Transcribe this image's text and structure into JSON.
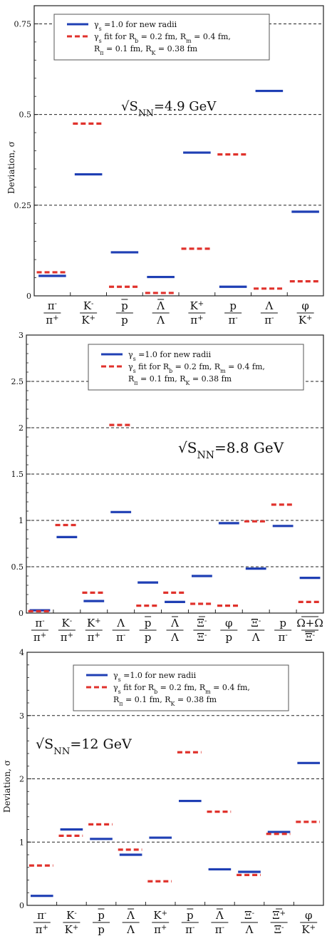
{
  "chart_data": [
    {
      "type": "bar",
      "ylabel": "Deviation, σ",
      "ylim": [
        0,
        0.8
      ],
      "yticks": [
        "0",
        "0.25",
        "0.5",
        "0.75"
      ],
      "ytick_values": [
        0,
        0.25,
        0.5,
        0.75
      ],
      "annotation": {
        "prefix": "√S",
        "sub": "NN",
        "suffix": "=4.9 GeV"
      },
      "grid": "dashed horizontal lines at 0.25, 0.5, 0.75",
      "legend": {
        "placement": "top-center",
        "lines": [
          [
            "γ",
            "s",
            " =1.0 for new radii"
          ],
          [
            "γ",
            "s",
            "  fit for R",
            "b",
            " = 0.2 fm, R",
            "m",
            " = 0.4 fm,"
          ],
          [
            "R",
            "π",
            " = 0.1 fm,  R",
            "K",
            " = 0.38 fm"
          ]
        ]
      },
      "categories": [
        {
          "num": "π",
          "num_sup": "-",
          "den": "π",
          "den_sup": "+"
        },
        {
          "num": "K",
          "num_sup": "-",
          "den": "K",
          "den_sup": "+"
        },
        {
          "num": "p",
          "num_bar": true,
          "den": "p"
        },
        {
          "num": "Λ",
          "num_bar": true,
          "den": "Λ"
        },
        {
          "num": "K",
          "num_sup": "+",
          "den": "π",
          "den_sup": "+"
        },
        {
          "num": "p",
          "den": "π",
          "den_sup": "-"
        },
        {
          "num": "Λ",
          "den": "π",
          "den_sup": "-"
        },
        {
          "num": "φ",
          "den": "K",
          "den_sup": "+"
        }
      ],
      "series": [
        {
          "name": "γs =1.0 for new radii",
          "color": "#1f3fb4",
          "style": "solid",
          "values": [
            0.055,
            0.335,
            0.12,
            0.052,
            0.395,
            0.025,
            0.565,
            0.232
          ]
        },
        {
          "name": "γs fit",
          "color": "#e0322c",
          "style": "dashed",
          "values": [
            0.065,
            0.475,
            0.025,
            0.008,
            0.13,
            0.39,
            0.02,
            0.04
          ]
        }
      ]
    },
    {
      "type": "bar",
      "ylabel": "",
      "ylim": [
        0,
        3
      ],
      "yticks": [
        "0",
        "0.5",
        "1",
        "1.5",
        "2",
        "2.5",
        "3"
      ],
      "ytick_values": [
        0,
        0.5,
        1,
        1.5,
        2,
        2.5,
        3
      ],
      "annotation": {
        "prefix": "√S",
        "sub": "NN",
        "suffix": "=8.8 GeV"
      },
      "grid": "dashed horizontal lines at 0.5, 1, 1.5, 2, 2.5",
      "legend": {
        "placement": "top-right",
        "lines": [
          [
            "γ",
            "s",
            " =1.0 for new radii"
          ],
          [
            "γ",
            "s",
            "  fit for R",
            "b",
            " = 0.2 fm, R",
            "m",
            " = 0.4 fm,"
          ],
          [
            "R",
            "π",
            " = 0.1 fm,  R",
            "K",
            " = 0.38 fm"
          ]
        ]
      },
      "categories": [
        {
          "num": "π",
          "num_sup": "-",
          "den": "π",
          "den_sup": "+"
        },
        {
          "num": "K",
          "num_sup": "-",
          "den": "π",
          "den_sup": "+"
        },
        {
          "num": "K",
          "num_sup": "+",
          "den": "π",
          "den_sup": "+"
        },
        {
          "num": "Λ",
          "den": "π",
          "den_sup": "-"
        },
        {
          "num": "p",
          "num_bar": true,
          "den": "p"
        },
        {
          "num": "Λ",
          "num_bar": true,
          "den": "Λ"
        },
        {
          "num": "Ξ",
          "num_sup": "-",
          "num_bar": true,
          "den": "Ξ",
          "den_sup": "-"
        },
        {
          "num": "φ",
          "den": "p"
        },
        {
          "num": "Ξ",
          "num_sup": "-",
          "den": "Λ"
        },
        {
          "num": "p",
          "den": "π",
          "den_sup": "-"
        },
        {
          "num": "Ω+Ω",
          "num_bar": true,
          "den": "Ξ",
          "den_sup": "-",
          "den_bar": true
        }
      ],
      "series": [
        {
          "name": "γs =1.0 for new radii",
          "color": "#1f3fb4",
          "style": "solid",
          "values": [
            0.03,
            0.82,
            0.13,
            1.09,
            0.33,
            0.12,
            0.4,
            0.97,
            0.48,
            0.94,
            0.38
          ]
        },
        {
          "name": "γs fit",
          "color": "#e0322c",
          "style": "dashed",
          "values": [
            0.02,
            0.95,
            0.22,
            2.03,
            0.08,
            0.22,
            0.1,
            0.08,
            0.99,
            1.17,
            0.12
          ]
        }
      ]
    },
    {
      "type": "bar",
      "ylabel": "Deviation, σ",
      "ylim": [
        0,
        4
      ],
      "yticks": [
        "0",
        "1",
        "2",
        "3",
        "4"
      ],
      "ytick_values": [
        0,
        1,
        2,
        3,
        4
      ],
      "annotation": {
        "prefix": "√S",
        "sub": "NN",
        "suffix": "=12 GeV"
      },
      "grid": "dashed horizontal lines at 1, 2, 3",
      "legend": {
        "placement": "top-center",
        "lines": [
          [
            "γ",
            "s",
            " =1.0  for new radii"
          ],
          [
            "γ",
            "s",
            "  fit for R",
            "b",
            " = 0.2 fm, R",
            "m",
            " = 0.4 fm,"
          ],
          [
            "R",
            "π",
            " = 0.1 fm,  R",
            "K",
            " = 0.38 fm"
          ]
        ]
      },
      "categories": [
        {
          "num": "π",
          "num_sup": "-",
          "den": "π",
          "den_sup": "+"
        },
        {
          "num": "K",
          "num_sup": "-",
          "den": "K",
          "den_sup": "+"
        },
        {
          "num": "p",
          "num_bar": true,
          "den": "p"
        },
        {
          "num": "Λ",
          "num_bar": true,
          "den": "Λ"
        },
        {
          "num": "K",
          "num_sup": "+",
          "den": "π",
          "den_sup": "+"
        },
        {
          "num": "p",
          "num_bar": true,
          "den": "π",
          "den_sup": "-"
        },
        {
          "num": "Λ",
          "num_bar": true,
          "den": "π",
          "den_sup": "-"
        },
        {
          "num": "Ξ",
          "num_sup": "-",
          "den": "Λ"
        },
        {
          "num": "Ξ",
          "num_sup": "+",
          "num_bar": true,
          "den": "Ξ",
          "den_sup": "-"
        },
        {
          "num": "φ",
          "den": "K",
          "den_sup": "+"
        }
      ],
      "series": [
        {
          "name": "γs =1.0 for new radii",
          "color": "#1f3fb4",
          "style": "solid",
          "values": [
            0.15,
            1.2,
            1.05,
            0.8,
            1.07,
            1.65,
            0.57,
            0.53,
            1.16,
            2.25
          ]
        },
        {
          "name": "γs fit",
          "color": "#e0322c",
          "style": "dashed",
          "values": [
            0.63,
            1.1,
            1.28,
            0.88,
            0.38,
            2.42,
            1.48,
            0.48,
            1.13,
            1.32
          ]
        }
      ]
    }
  ]
}
